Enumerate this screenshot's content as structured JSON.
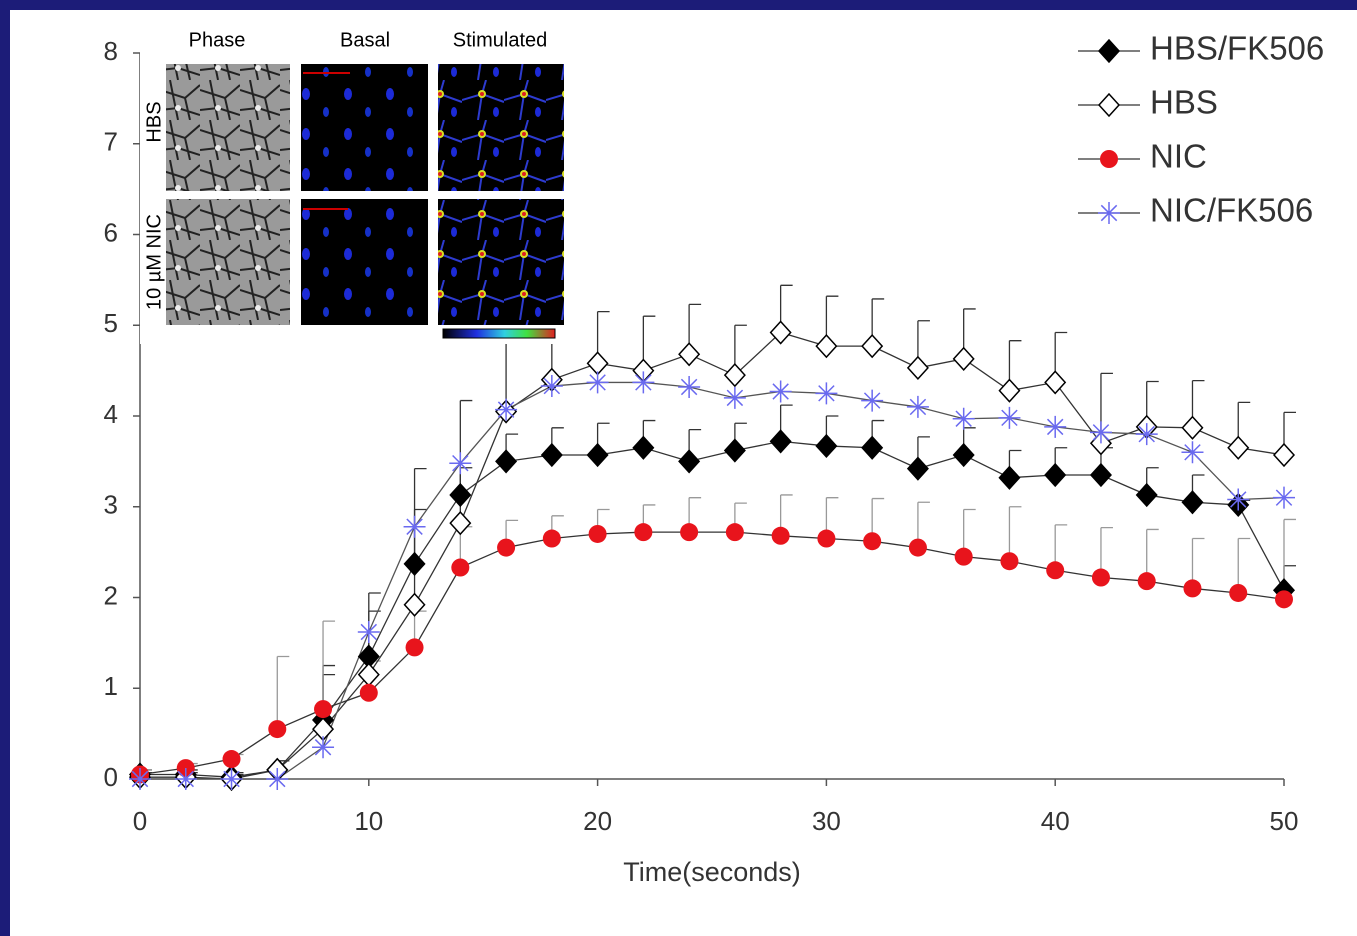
{
  "chart_data": {
    "type": "line",
    "x_label": "Time(seconds)",
    "x": [
      0,
      2,
      4,
      6,
      8,
      10,
      12,
      14,
      16,
      18,
      20,
      22,
      24,
      26,
      28,
      30,
      32,
      34,
      36,
      38,
      40,
      42,
      44,
      46,
      48,
      50
    ],
    "xlim": [
      0,
      50
    ],
    "xticks": [
      0,
      10,
      20,
      30,
      40,
      50
    ],
    "ylim": [
      0,
      8
    ],
    "yticks": [
      0,
      1,
      2,
      3,
      4,
      5,
      6,
      7,
      8
    ],
    "legend": "top-right",
    "series": [
      {
        "name": "HBS/FK506",
        "color": "#000000",
        "marker": "diamond",
        "values": [
          0.05,
          0.05,
          0.02,
          0.1,
          0.65,
          1.35,
          2.37,
          3.13,
          3.5,
          3.57,
          3.57,
          3.65,
          3.5,
          3.62,
          3.72,
          3.67,
          3.65,
          3.42,
          3.57,
          3.32,
          3.35,
          3.35,
          3.13,
          3.05,
          3.02,
          2.08
        ],
        "errors": [
          0.05,
          0.05,
          0.05,
          0.1,
          0.6,
          0.7,
          1.05,
          0.3,
          0.3,
          0.3,
          0.35,
          0.3,
          0.35,
          0.3,
          0.4,
          0.33,
          0.3,
          0.35,
          0.3,
          0.3,
          0.3,
          0.3,
          0.3,
          0.3,
          0.05,
          0.27
        ]
      },
      {
        "name": "HBS",
        "color": "#000000",
        "marker": "diamond-open",
        "values": [
          0.02,
          0.02,
          0.0,
          0.1,
          0.55,
          1.15,
          1.92,
          2.82,
          4.05,
          4.4,
          4.58,
          4.5,
          4.68,
          4.45,
          4.92,
          4.77,
          4.77,
          4.53,
          4.63,
          4.28,
          4.37,
          3.7,
          3.88,
          3.87,
          3.65,
          3.57
        ],
        "errors": [
          0.05,
          0.05,
          0.05,
          0.1,
          0.6,
          0.7,
          1.05,
          1.35,
          0.95,
          0.5,
          0.57,
          0.6,
          0.55,
          0.55,
          0.52,
          0.55,
          0.52,
          0.52,
          0.55,
          0.55,
          0.55,
          0.77,
          0.5,
          0.52,
          0.5,
          0.47
        ]
      },
      {
        "name": "NIC",
        "color": "#e8141c",
        "marker": "circle",
        "values": [
          0.05,
          0.12,
          0.22,
          0.55,
          0.77,
          0.95,
          1.45,
          2.33,
          2.55,
          2.65,
          2.7,
          2.72,
          2.72,
          2.72,
          2.68,
          2.65,
          2.62,
          2.55,
          2.45,
          2.4,
          2.3,
          2.22,
          2.18,
          2.1,
          2.05,
          1.98
        ],
        "errors": [
          0.05,
          0.05,
          0.05,
          0.8,
          0.97,
          0.35,
          0.4,
          0.45,
          0.3,
          0.25,
          0.27,
          0.3,
          0.38,
          0.32,
          0.45,
          0.45,
          0.47,
          0.5,
          0.52,
          0.6,
          0.5,
          0.55,
          0.57,
          0.55,
          0.6,
          0.88
        ]
      },
      {
        "name": "NIC/FK506",
        "color": "#6a6af0",
        "marker": "asterisk",
        "values": [
          0.0,
          0.0,
          0.0,
          0.0,
          0.35,
          1.62,
          2.78,
          3.48,
          4.07,
          4.33,
          4.37,
          4.37,
          4.32,
          4.2,
          4.27,
          4.25,
          4.17,
          4.1,
          3.97,
          3.98,
          3.88,
          3.82,
          3.8,
          3.6,
          3.08,
          3.1
        ]
      }
    ]
  },
  "inset": {
    "columns": [
      "Phase",
      "Basal",
      "Stimulated"
    ],
    "rows": [
      "HBS",
      "10 µM NIC"
    ]
  }
}
